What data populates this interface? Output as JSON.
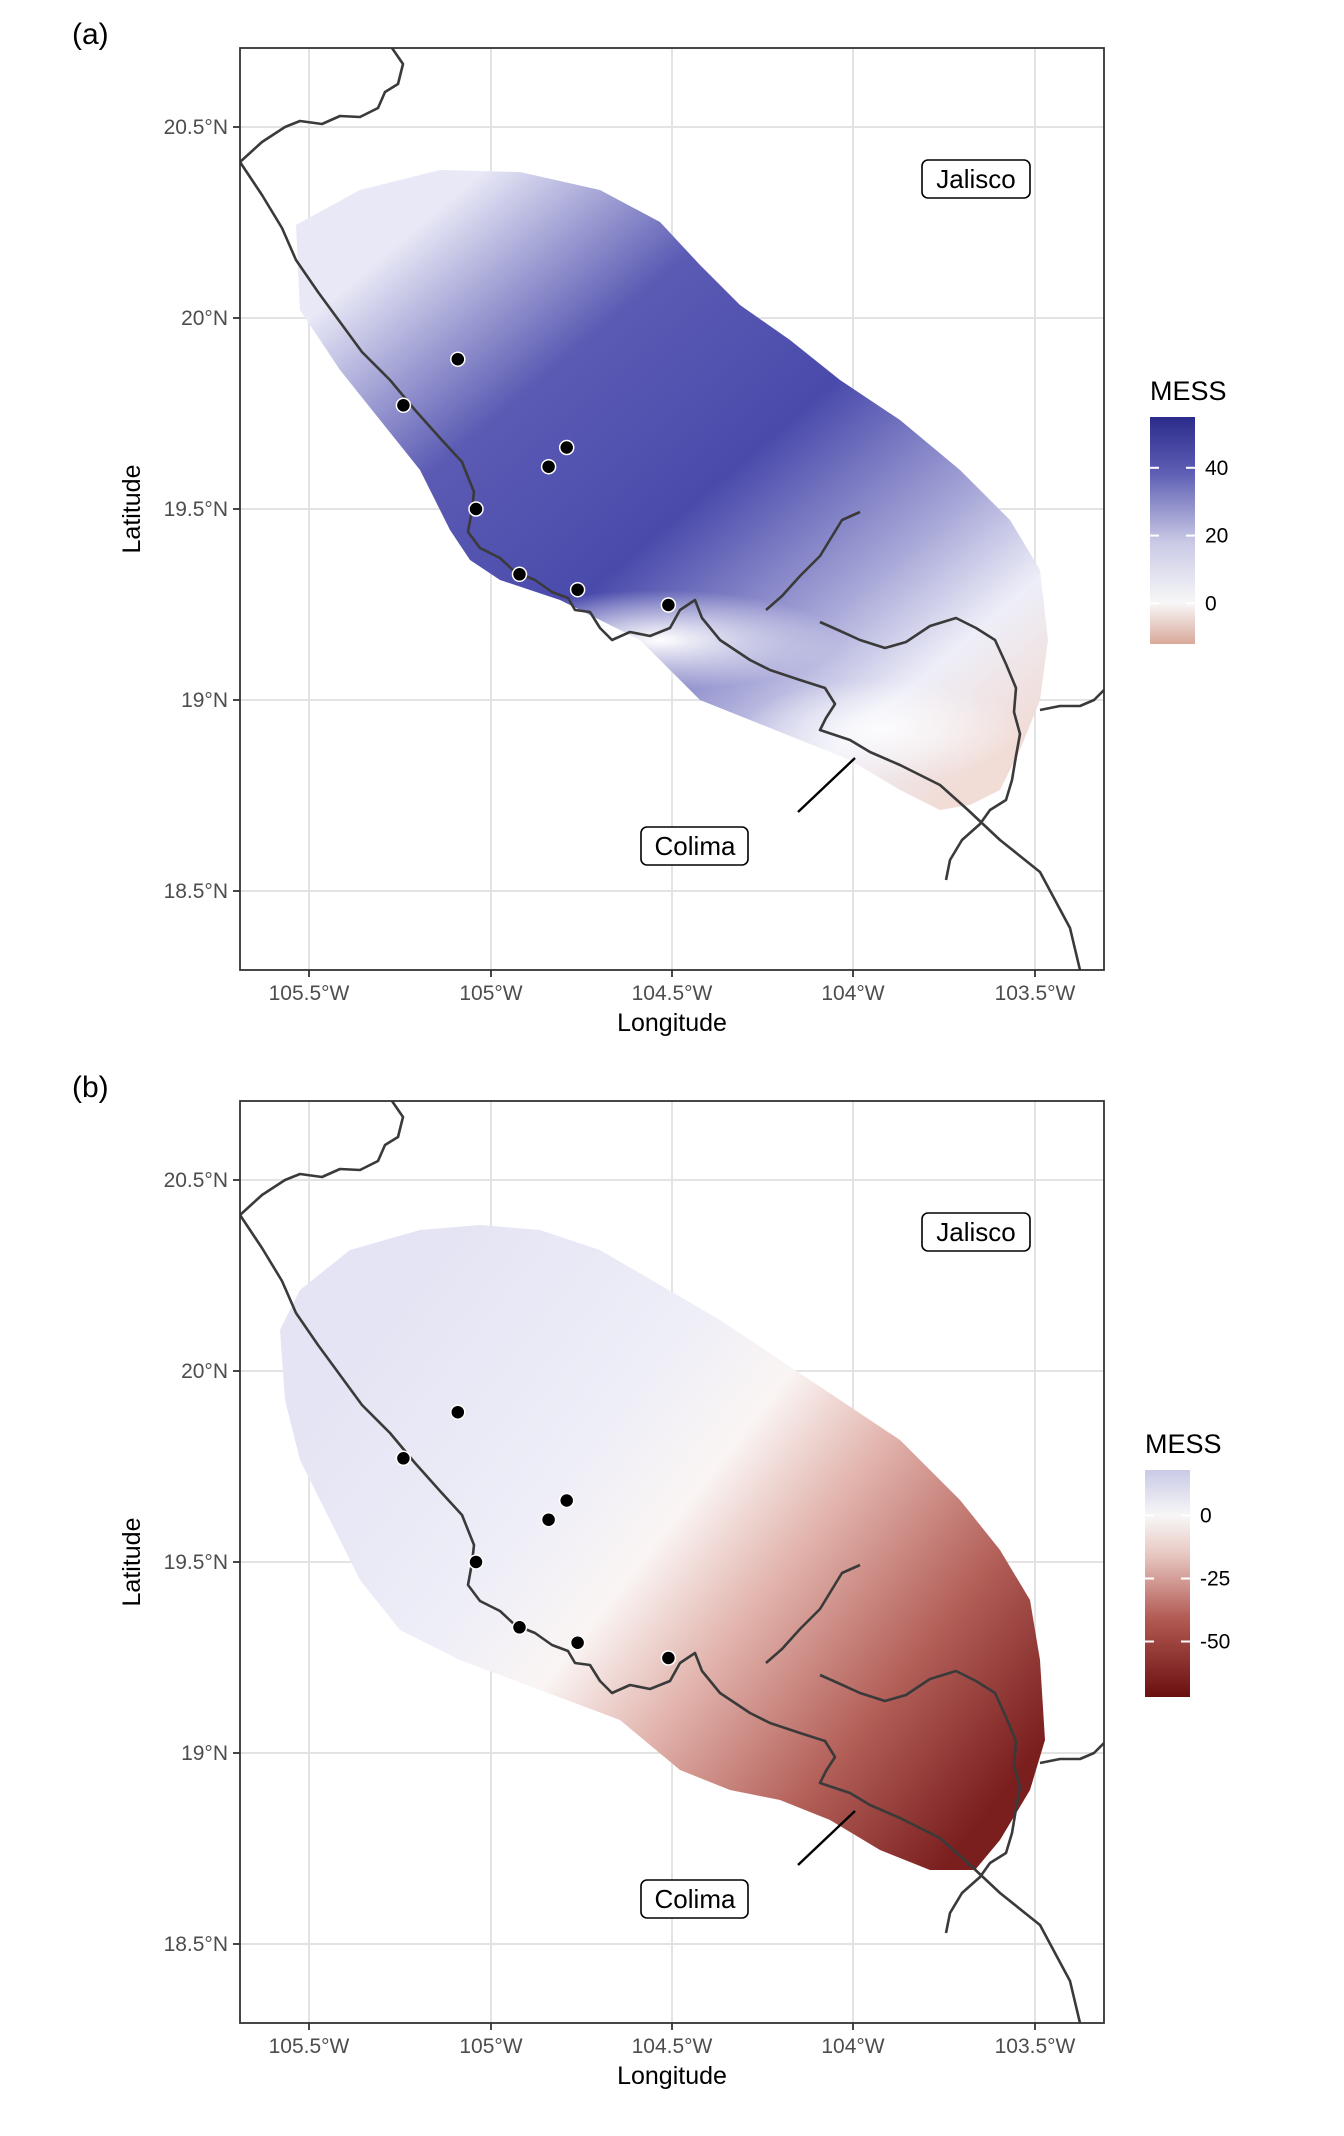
{
  "panels": [
    {
      "letter": "(a)",
      "xlabel": "Longitude",
      "ylabel": "Latitude",
      "xticks": [
        "105.5°W",
        "105°W",
        "104.5°W",
        "104°W",
        "103.5°W"
      ],
      "yticks": [
        "20.5°N",
        "20°N",
        "19.5°N",
        "19°N",
        "18.5°N"
      ],
      "legend": {
        "title": "MESS",
        "ticks": [
          "40",
          "20",
          "0"
        ],
        "range": [
          -12,
          55
        ],
        "tick_values": [
          40,
          20,
          0
        ]
      },
      "regions": [
        {
          "name": "Jalisco"
        },
        {
          "name": "Colima"
        }
      ]
    },
    {
      "letter": "(b)",
      "xlabel": "Longitude",
      "ylabel": "Latitude",
      "xticks": [
        "105.5°W",
        "105°W",
        "104.5°W",
        "104°W",
        "103.5°W"
      ],
      "yticks": [
        "20.5°N",
        "20°N",
        "19.5°N",
        "19°N",
        "18.5°N"
      ],
      "legend": {
        "title": "MESS",
        "ticks": [
          "0",
          "-25",
          "-50"
        ],
        "range": [
          -72,
          18
        ],
        "tick_values": [
          0,
          -25,
          -50
        ]
      },
      "regions": [
        {
          "name": "Jalisco"
        },
        {
          "name": "Colima"
        }
      ]
    }
  ],
  "map_data": {
    "x_range": [
      -105.7,
      -103.32
    ],
    "y_range": [
      18.3,
      20.7
    ],
    "occurrence_points": [
      {
        "lon": -105.1,
        "lat": 19.89
      },
      {
        "lon": -105.25,
        "lat": 19.77
      },
      {
        "lon": -104.8,
        "lat": 19.66
      },
      {
        "lon": -104.85,
        "lat": 19.61
      },
      {
        "lon": -105.05,
        "lat": 19.5
      },
      {
        "lon": -104.93,
        "lat": 19.33
      },
      {
        "lon": -104.77,
        "lat": 19.29
      },
      {
        "lon": -104.52,
        "lat": 19.25
      }
    ]
  },
  "colors": {
    "positive_high": "#2b2b8c",
    "neutral": "#f7f7f7",
    "negative_low_a": "#d9a99a",
    "negative_low_b": "#6b0f0f",
    "border": "#3a3a3a",
    "grid": "#e3e3e3"
  }
}
